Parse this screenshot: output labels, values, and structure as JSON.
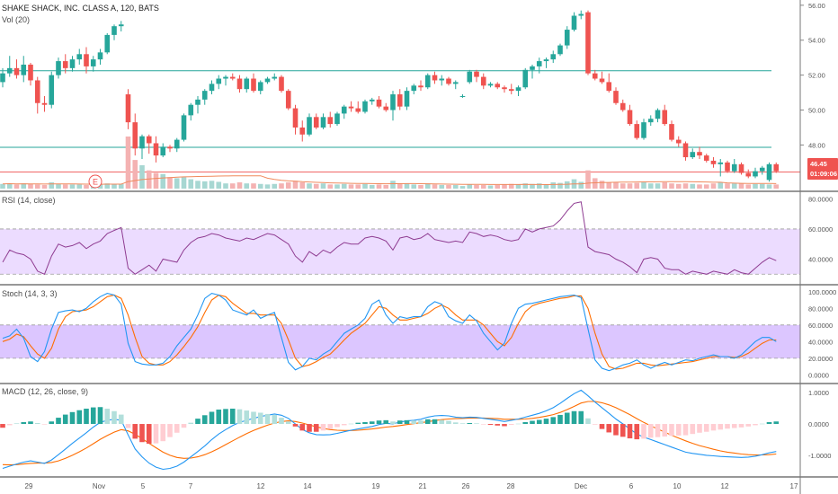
{
  "chart_data": {
    "type": "candlestick",
    "title": "SHAKE SHACK, INC. CLASS A, 120, BATS",
    "volume_label": "Vol (20)",
    "colors": {
      "up": "#26a69a",
      "down": "#ef5350",
      "up_vol": "#a7d7d2",
      "down_vol": "#f4b2b2",
      "hline": "#26a69a",
      "price_line": "#ef5350",
      "rsi": "#8e3b91",
      "rsi_band": "#ecdcff",
      "stoch_band": "#dcc6ff",
      "k": "#2196f3",
      "d": "#ff6d00",
      "macd": "#2196f3",
      "signal": "#ff6d00",
      "ma": "#f08a5d",
      "price_tag": "#ef5350"
    },
    "price_axis": {
      "ylim": [
        45.4,
        56.3
      ],
      "ticks": [
        "56.00",
        "54.00",
        "52.00",
        "50.00",
        "48.00"
      ]
    },
    "current_price": "46.45",
    "countdown": "01:09:06",
    "horizontal_lines": [
      52.25,
      47.87
    ],
    "earnings_marker": "E",
    "x_ticks": [
      "29",
      "Nov",
      "5",
      "7",
      "12",
      "14",
      "19",
      "21",
      "26",
      "28",
      "Dec",
      "6",
      "10",
      "12",
      "17"
    ],
    "candles": [
      [
        51.6,
        52.4,
        51.3,
        52.1
      ],
      [
        52.1,
        53.1,
        51.9,
        52.4
      ],
      [
        52.4,
        52.9,
        51.8,
        52.0
      ],
      [
        52.0,
        53.1,
        51.6,
        52.6
      ],
      [
        52.6,
        52.7,
        51.4,
        51.7
      ],
      [
        51.7,
        51.9,
        49.8,
        50.4
      ],
      [
        50.4,
        50.8,
        49.9,
        50.3
      ],
      [
        50.3,
        52.2,
        50.1,
        52.0
      ],
      [
        52.0,
        53.0,
        51.8,
        52.8
      ],
      [
        52.8,
        53.2,
        52.1,
        52.4
      ],
      [
        52.4,
        53.1,
        52.2,
        52.9
      ],
      [
        52.9,
        53.5,
        52.6,
        53.2
      ],
      [
        53.2,
        53.6,
        52.1,
        52.5
      ],
      [
        52.5,
        53.1,
        52.2,
        52.9
      ],
      [
        52.9,
        53.5,
        52.6,
        53.3
      ],
      [
        53.3,
        54.4,
        53.2,
        54.3
      ],
      [
        54.3,
        54.9,
        54.0,
        54.8
      ],
      [
        54.8,
        55.1,
        54.5,
        54.9
      ],
      [
        50.9,
        51.2,
        48.9,
        49.3
      ],
      [
        49.3,
        49.8,
        47.4,
        47.8
      ],
      [
        47.8,
        48.6,
        47.2,
        48.5
      ],
      [
        48.5,
        48.6,
        47.5,
        48.1
      ],
      [
        48.1,
        48.5,
        47.0,
        47.4
      ],
      [
        47.4,
        48.1,
        47.3,
        47.9
      ],
      [
        47.9,
        48.0,
        47.6,
        47.8
      ],
      [
        47.8,
        48.4,
        47.6,
        48.3
      ],
      [
        48.3,
        49.8,
        48.2,
        49.7
      ],
      [
        49.7,
        50.4,
        49.4,
        50.3
      ],
      [
        50.3,
        50.8,
        49.8,
        50.6
      ],
      [
        50.6,
        51.2,
        50.3,
        51.1
      ],
      [
        51.1,
        51.7,
        50.9,
        51.5
      ],
      [
        51.5,
        52.0,
        51.2,
        51.8
      ],
      [
        51.8,
        52.0,
        51.4,
        51.9
      ],
      [
        51.9,
        52.1,
        51.7,
        51.8
      ],
      [
        51.8,
        52.0,
        51.0,
        51.2
      ],
      [
        51.2,
        51.9,
        51.0,
        51.8
      ],
      [
        51.8,
        52.1,
        51.0,
        51.1
      ],
      [
        51.1,
        51.7,
        50.9,
        51.6
      ],
      [
        51.6,
        51.9,
        51.5,
        51.8
      ],
      [
        51.8,
        52.1,
        51.7,
        51.9
      ],
      [
        51.9,
        52.0,
        51.0,
        51.1
      ],
      [
        51.1,
        51.2,
        50.0,
        50.1
      ],
      [
        50.1,
        50.3,
        48.6,
        49.0
      ],
      [
        49.0,
        49.4,
        48.2,
        48.6
      ],
      [
        48.6,
        49.8,
        48.5,
        49.6
      ],
      [
        49.6,
        49.8,
        48.9,
        49.0
      ],
      [
        49.0,
        49.8,
        48.9,
        49.6
      ],
      [
        49.6,
        49.9,
        49.0,
        49.2
      ],
      [
        49.2,
        49.9,
        49.1,
        49.8
      ],
      [
        49.8,
        50.3,
        49.5,
        50.2
      ],
      [
        50.2,
        50.5,
        49.9,
        50.1
      ],
      [
        50.1,
        50.5,
        49.8,
        49.9
      ],
      [
        49.9,
        50.6,
        49.8,
        50.5
      ],
      [
        50.5,
        50.7,
        50.3,
        50.6
      ],
      [
        50.6,
        50.8,
        50.1,
        50.2
      ],
      [
        50.2,
        50.4,
        49.9,
        50.0
      ],
      [
        50.0,
        51.1,
        49.4,
        50.9
      ],
      [
        50.9,
        51.2,
        50.0,
        50.2
      ],
      [
        50.2,
        51.3,
        50.0,
        51.1
      ],
      [
        51.1,
        51.5,
        50.9,
        51.4
      ],
      [
        51.4,
        51.7,
        51.1,
        51.3
      ],
      [
        51.3,
        52.1,
        51.2,
        52.0
      ],
      [
        52.0,
        52.2,
        51.5,
        51.7
      ],
      [
        51.7,
        52.0,
        51.4,
        51.8
      ],
      [
        51.8,
        51.9,
        51.4,
        51.5
      ],
      [
        51.5,
        51.7,
        51.2,
        51.6
      ],
      [
        50.8,
        50.9,
        50.7,
        50.8
      ],
      [
        51.6,
        52.3,
        51.5,
        52.2
      ],
      [
        52.2,
        52.3,
        51.6,
        51.9
      ],
      [
        51.9,
        52.1,
        51.2,
        51.4
      ],
      [
        51.4,
        51.6,
        51.3,
        51.5
      ],
      [
        51.5,
        51.6,
        51.2,
        51.3
      ],
      [
        51.3,
        51.4,
        51.0,
        51.2
      ],
      [
        51.2,
        51.5,
        50.9,
        51.1
      ],
      [
        51.1,
        51.4,
        50.8,
        51.3
      ],
      [
        51.3,
        52.4,
        51.2,
        52.3
      ],
      [
        52.3,
        52.6,
        51.8,
        52.5
      ],
      [
        52.5,
        53.0,
        52.1,
        52.8
      ],
      [
        52.8,
        53.0,
        52.4,
        52.9
      ],
      [
        52.9,
        53.4,
        52.7,
        53.2
      ],
      [
        53.2,
        53.8,
        53.1,
        53.7
      ],
      [
        53.7,
        54.8,
        53.5,
        54.6
      ],
      [
        54.6,
        55.6,
        54.5,
        55.4
      ],
      [
        55.4,
        55.7,
        55.2,
        55.5
      ],
      [
        55.6,
        55.7,
        52.0,
        52.1
      ],
      [
        52.1,
        52.3,
        51.7,
        51.8
      ],
      [
        51.8,
        52.2,
        51.5,
        51.6
      ],
      [
        51.6,
        52.1,
        51.0,
        51.1
      ],
      [
        51.1,
        51.3,
        50.3,
        50.4
      ],
      [
        50.4,
        50.6,
        49.9,
        50.0
      ],
      [
        50.0,
        50.3,
        49.1,
        49.2
      ],
      [
        49.2,
        49.4,
        48.3,
        48.4
      ],
      [
        48.4,
        49.5,
        48.3,
        49.3
      ],
      [
        49.3,
        49.7,
        49.1,
        49.5
      ],
      [
        49.5,
        50.1,
        49.3,
        50.0
      ],
      [
        50.0,
        50.3,
        49.1,
        49.2
      ],
      [
        49.2,
        49.4,
        48.2,
        48.3
      ],
      [
        48.3,
        48.5,
        47.9,
        48.1
      ],
      [
        48.1,
        48.2,
        47.1,
        47.3
      ],
      [
        47.3,
        47.8,
        47.2,
        47.6
      ],
      [
        47.6,
        47.9,
        47.2,
        47.4
      ],
      [
        47.4,
        47.5,
        47.0,
        47.1
      ],
      [
        47.1,
        47.3,
        46.7,
        46.9
      ],
      [
        46.9,
        47.2,
        46.2,
        47.0
      ],
      [
        47.0,
        47.1,
        46.4,
        46.5
      ],
      [
        46.5,
        47.2,
        46.4,
        46.9
      ],
      [
        46.9,
        47.0,
        46.3,
        46.4
      ],
      [
        46.4,
        46.6,
        46.1,
        46.2
      ],
      [
        46.2,
        46.7,
        46.1,
        46.5
      ],
      [
        46.5,
        46.8,
        46.3,
        46.7
      ],
      [
        46.0,
        47.0,
        45.9,
        46.9
      ],
      [
        46.9,
        47.0,
        46.4,
        46.5
      ]
    ],
    "volumes": [
      0.09,
      0.1,
      0.08,
      0.1,
      0.09,
      0.08,
      0.07,
      0.12,
      0.09,
      0.08,
      0.08,
      0.08,
      0.07,
      0.07,
      0.08,
      0.1,
      0.09,
      0.09,
      1.0,
      0.55,
      0.45,
      0.35,
      0.3,
      0.28,
      0.22,
      0.2,
      0.22,
      0.18,
      0.15,
      0.14,
      0.15,
      0.13,
      0.1,
      0.1,
      0.12,
      0.1,
      0.1,
      0.09,
      0.08,
      0.09,
      0.1,
      0.12,
      0.15,
      0.12,
      0.1,
      0.09,
      0.1,
      0.08,
      0.08,
      0.09,
      0.08,
      0.08,
      0.09,
      0.07,
      0.08,
      0.07,
      0.15,
      0.09,
      0.1,
      0.08,
      0.07,
      0.1,
      0.08,
      0.07,
      0.07,
      0.07,
      0.05,
      0.08,
      0.07,
      0.07,
      0.06,
      0.07,
      0.08,
      0.09,
      0.08,
      0.1,
      0.09,
      0.1,
      0.08,
      0.12,
      0.11,
      0.14,
      0.18,
      0.13,
      0.35,
      0.2,
      0.15,
      0.12,
      0.12,
      0.1,
      0.1,
      0.11,
      0.12,
      0.1,
      0.1,
      0.12,
      0.1,
      0.09,
      0.1,
      0.09,
      0.08,
      0.08,
      0.1,
      0.12,
      0.1,
      0.1,
      0.1,
      0.08,
      0.09,
      0.09,
      0.08,
      0.08
    ],
    "rsi": {
      "label": "RSI (14, close)",
      "ylim": [
        26,
        82
      ],
      "band": [
        30,
        60
      ],
      "ticks": [
        "80.0000",
        "60.0000",
        "40.0000"
      ],
      "values": [
        38,
        46,
        44,
        43,
        40,
        32,
        30,
        42,
        50,
        48,
        49,
        51,
        47,
        50,
        52,
        57,
        59,
        61,
        34,
        30,
        33,
        36,
        32,
        40,
        39,
        38,
        46,
        51,
        54,
        55,
        57,
        56,
        54,
        53,
        52,
        54,
        53,
        55,
        57,
        56,
        53,
        50,
        42,
        38,
        45,
        42,
        46,
        44,
        48,
        51,
        50,
        50,
        54,
        55,
        54,
        52,
        46,
        54,
        55,
        53,
        54,
        57,
        53,
        52,
        51,
        52,
        51,
        58,
        57,
        55,
        56,
        55,
        53,
        52,
        53,
        60,
        58,
        60,
        61,
        62,
        66,
        72,
        77,
        78,
        48,
        45,
        44,
        43,
        40,
        38,
        35,
        31,
        40,
        41,
        40,
        34,
        33,
        33,
        30,
        32,
        31,
        30,
        32,
        31,
        30,
        33,
        31,
        30,
        34,
        38,
        41,
        39
      ]
    },
    "stoch": {
      "label": "Stoch (14, 3, 3)",
      "ylim": [
        -5,
        103
      ],
      "band": [
        20,
        60
      ],
      "ticks": [
        "100.0000",
        "80.0000",
        "60.0000",
        "40.0000",
        "20.0000",
        "0.0000"
      ],
      "k": [
        44,
        47,
        55,
        44,
        22,
        16,
        28,
        55,
        75,
        77,
        78,
        76,
        80,
        88,
        94,
        98,
        96,
        85,
        38,
        16,
        13,
        12,
        12,
        14,
        22,
        35,
        45,
        55,
        72,
        92,
        98,
        96,
        90,
        78,
        75,
        72,
        78,
        68,
        72,
        75,
        45,
        15,
        6,
        10,
        20,
        18,
        25,
        30,
        40,
        50,
        55,
        60,
        68,
        85,
        90,
        72,
        62,
        70,
        68,
        70,
        70,
        82,
        88,
        85,
        70,
        65,
        62,
        72,
        65,
        50,
        40,
        30,
        38,
        62,
        80,
        85,
        86,
        88,
        90,
        92,
        94,
        95,
        96,
        93,
        55,
        18,
        8,
        5,
        8,
        12,
        14,
        18,
        12,
        8,
        12,
        15,
        12,
        15,
        18,
        17,
        20,
        22,
        24,
        22,
        22,
        20,
        24,
        32,
        40,
        45,
        45,
        40
      ],
      "d": [
        40,
        43,
        49,
        46,
        35,
        25,
        20,
        32,
        55,
        70,
        76,
        77,
        78,
        82,
        88,
        94,
        96,
        92,
        72,
        45,
        22,
        14,
        12,
        12,
        16,
        24,
        34,
        45,
        58,
        75,
        90,
        96,
        94,
        86,
        80,
        74,
        74,
        72,
        72,
        72,
        62,
        42,
        20,
        10,
        12,
        16,
        21,
        25,
        33,
        42,
        50,
        56,
        62,
        72,
        82,
        80,
        72,
        66,
        66,
        68,
        70,
        74,
        80,
        84,
        80,
        72,
        66,
        66,
        66,
        60,
        50,
        40,
        35,
        45,
        62,
        76,
        83,
        86,
        88,
        90,
        92,
        93,
        95,
        95,
        80,
        50,
        25,
        10,
        7,
        8,
        11,
        14,
        14,
        12,
        11,
        12,
        13,
        14,
        15,
        16,
        18,
        20,
        22,
        22,
        22,
        21,
        22,
        26,
        32,
        38,
        42,
        42
      ]
    },
    "macd": {
      "label": "MACD (12, 26, close, 9)",
      "ylim": [
        -1.55,
        1.15
      ],
      "ticks": [
        "1.0000",
        "0.0000",
        "-1.0000"
      ],
      "macd": [
        -1.42,
        -1.35,
        -1.28,
        -1.22,
        -1.18,
        -1.22,
        -1.26,
        -1.15,
        -0.98,
        -0.8,
        -0.62,
        -0.45,
        -0.28,
        -0.1,
        0.05,
        0.12,
        0.15,
        0.12,
        -0.35,
        -0.8,
        -1.05,
        -1.25,
        -1.38,
        -1.45,
        -1.42,
        -1.35,
        -1.22,
        -1.05,
        -0.88,
        -0.7,
        -0.5,
        -0.32,
        -0.18,
        -0.05,
        0.05,
        0.12,
        0.18,
        0.24,
        0.28,
        0.32,
        0.28,
        0.18,
        0.0,
        -0.18,
        -0.28,
        -0.34,
        -0.35,
        -0.34,
        -0.3,
        -0.25,
        -0.2,
        -0.16,
        -0.12,
        -0.08,
        -0.02,
        0.02,
        0.0,
        0.06,
        0.1,
        0.12,
        0.15,
        0.22,
        0.26,
        0.27,
        0.26,
        0.22,
        0.2,
        0.22,
        0.21,
        0.18,
        0.15,
        0.12,
        0.08,
        0.12,
        0.16,
        0.22,
        0.28,
        0.34,
        0.42,
        0.52,
        0.66,
        0.82,
        0.97,
        1.08,
        0.9,
        0.7,
        0.52,
        0.34,
        0.16,
        0.0,
        -0.16,
        -0.32,
        -0.42,
        -0.5,
        -0.58,
        -0.66,
        -0.74,
        -0.82,
        -0.9,
        -0.94,
        -0.97,
        -1.0,
        -1.02,
        -1.04,
        -1.05,
        -1.06,
        -1.07,
        -1.06,
        -1.03,
        -0.98,
        -0.92,
        -0.88
      ],
      "signal": [
        -1.3,
        -1.31,
        -1.3,
        -1.28,
        -1.26,
        -1.25,
        -1.25,
        -1.23,
        -1.18,
        -1.1,
        -1.0,
        -0.89,
        -0.77,
        -0.63,
        -0.49,
        -0.37,
        -0.26,
        -0.18,
        -0.22,
        -0.33,
        -0.47,
        -0.62,
        -0.76,
        -0.9,
        -1.0,
        -1.07,
        -1.1,
        -1.09,
        -1.05,
        -0.98,
        -0.89,
        -0.78,
        -0.66,
        -0.54,
        -0.42,
        -0.31,
        -0.21,
        -0.12,
        -0.04,
        0.03,
        0.08,
        0.1,
        0.08,
        0.03,
        -0.03,
        -0.09,
        -0.14,
        -0.18,
        -0.2,
        -0.21,
        -0.21,
        -0.2,
        -0.18,
        -0.16,
        -0.13,
        -0.1,
        -0.08,
        -0.05,
        -0.02,
        0.01,
        0.04,
        0.07,
        0.11,
        0.14,
        0.16,
        0.17,
        0.18,
        0.19,
        0.19,
        0.19,
        0.18,
        0.17,
        0.15,
        0.15,
        0.15,
        0.16,
        0.18,
        0.21,
        0.25,
        0.3,
        0.37,
        0.46,
        0.56,
        0.67,
        0.72,
        0.72,
        0.68,
        0.61,
        0.52,
        0.41,
        0.3,
        0.17,
        0.05,
        -0.06,
        -0.16,
        -0.26,
        -0.36,
        -0.45,
        -0.54,
        -0.62,
        -0.69,
        -0.75,
        -0.81,
        -0.86,
        -0.9,
        -0.93,
        -0.96,
        -0.98,
        -0.99,
        -0.99,
        -0.98,
        -0.96
      ]
    }
  }
}
